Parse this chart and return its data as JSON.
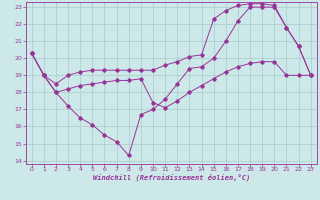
{
  "xlabel": "Windchill (Refroidissement éolien,°C)",
  "background_color": "#cce8e8",
  "grid_color": "#aacccc",
  "line_color": "#993399",
  "xlim": [
    -0.5,
    23.5
  ],
  "ylim": [
    13.8,
    23.3
  ],
  "xticks": [
    0,
    1,
    2,
    3,
    4,
    5,
    6,
    7,
    8,
    9,
    10,
    11,
    12,
    13,
    14,
    15,
    16,
    17,
    18,
    19,
    20,
    21,
    22,
    23
  ],
  "yticks": [
    14,
    15,
    16,
    17,
    18,
    19,
    20,
    21,
    22,
    23
  ],
  "line1_x": [
    0,
    1,
    2,
    3,
    4,
    5,
    6,
    7,
    8,
    9,
    10,
    11,
    12,
    13,
    14,
    15,
    16,
    17,
    18,
    19,
    20,
    21,
    22,
    23
  ],
  "line1_y": [
    20.3,
    19.0,
    18.0,
    17.2,
    16.5,
    16.1,
    15.5,
    15.1,
    14.3,
    16.7,
    17.0,
    17.6,
    18.5,
    19.4,
    19.5,
    20.0,
    21.0,
    22.2,
    23.0,
    23.0,
    23.0,
    21.8,
    20.7,
    19.0
  ],
  "line2_x": [
    0,
    1,
    2,
    3,
    4,
    5,
    6,
    7,
    8,
    9,
    10,
    11,
    12,
    13,
    14,
    15,
    16,
    17,
    18,
    19,
    20,
    21,
    22,
    23
  ],
  "line2_y": [
    20.3,
    19.0,
    18.5,
    19.0,
    19.2,
    19.3,
    19.3,
    19.3,
    19.3,
    19.3,
    19.3,
    19.6,
    19.8,
    20.1,
    20.2,
    22.3,
    22.8,
    23.1,
    23.2,
    23.2,
    23.1,
    21.8,
    20.7,
    19.0
  ],
  "line3_x": [
    0,
    1,
    2,
    3,
    4,
    5,
    6,
    7,
    8,
    9,
    10,
    11,
    12,
    13,
    14,
    15,
    16,
    17,
    18,
    19,
    20,
    21,
    22,
    23
  ],
  "line3_y": [
    20.3,
    19.0,
    18.0,
    18.2,
    18.4,
    18.5,
    18.6,
    18.7,
    18.7,
    18.8,
    17.4,
    17.1,
    17.5,
    18.0,
    18.4,
    18.8,
    19.2,
    19.5,
    19.7,
    19.8,
    19.8,
    19.0,
    19.0,
    19.0
  ]
}
